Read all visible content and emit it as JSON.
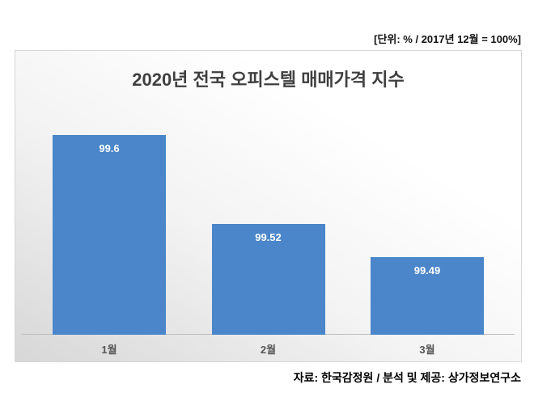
{
  "header": {
    "unit_label": "[단위: % / 2017년 12월 = 100%]"
  },
  "footer": {
    "source": "자료: 한국감정원 / 분석 및 제공: 상가정보연구소"
  },
  "chart_data": {
    "type": "bar",
    "title": "2020년 전국 오피스텔 매매가격 지수",
    "categories": [
      "1월",
      "2월",
      "3월"
    ],
    "values": [
      99.6,
      99.52,
      99.49
    ],
    "value_labels": [
      "99.6",
      "99.52",
      "99.49"
    ],
    "ylim": [
      99.42,
      99.62
    ],
    "bar_color": "#4a86c9",
    "value_label_color": "#ffffff",
    "grid": false,
    "legend": false,
    "xlabel": "",
    "ylabel": ""
  }
}
